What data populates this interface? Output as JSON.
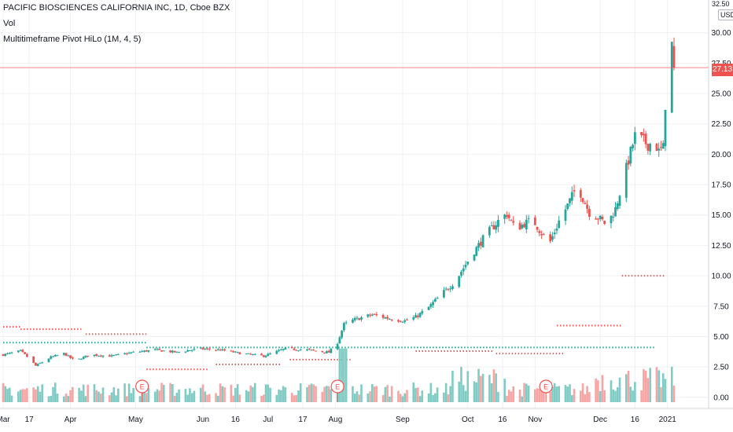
{
  "legend": {
    "symbol": "PACIFIC BIOSCIENCES CALIFORNIA INC, 1D, Cboe BZX",
    "vol": "Vol",
    "indicator": "Multitimeframe Pivot HiLo (1M, 4, 5)"
  },
  "currency": "USD",
  "top_cut_label": "32.50",
  "last_price": "27.13",
  "colors": {
    "up": "#26a69a",
    "down": "#ef5350",
    "vol_up": "#80cbc4",
    "vol_down": "#f7a5a4",
    "pivot_high": "#ef5350",
    "pivot_low": "#26a69a",
    "grid": "#eef0f3",
    "axis_text": "#131722"
  },
  "chart_data": {
    "type": "candlestick",
    "title": "PACIFIC BIOSCIENCES CALIFORNIA INC, 1D, Cboe BZX",
    "y_ticks": [
      "0.00",
      "2.50",
      "5.00",
      "7.50",
      "10.00",
      "12.50",
      "15.00",
      "17.50",
      "20.00",
      "22.50",
      "25.00",
      "27.50",
      "30.00"
    ],
    "ylim": [
      -0.4,
      32.5
    ],
    "x_ticks": [
      "Mar",
      "17",
      "Apr",
      "May",
      "Jun",
      "16",
      "Jul",
      "17",
      "Aug",
      "Sep",
      "Oct",
      "16",
      "Nov",
      "Dec",
      "16",
      "2021"
    ],
    "x_tick_days": [
      0,
      12,
      31,
      61,
      92,
      107,
      122,
      138,
      153,
      184,
      214,
      230,
      245,
      275,
      291,
      306
    ],
    "days_range": [
      0,
      330
    ],
    "last_price": 27.13,
    "earnings_markers": [
      {
        "label": "E",
        "day": 64
      },
      {
        "label": "E",
        "day": 154
      },
      {
        "label": "E",
        "day": 250
      }
    ],
    "pivot_lines": [
      {
        "kind": "high",
        "from": 0,
        "to": 8,
        "value": 5.8
      },
      {
        "kind": "low",
        "from": 0,
        "to": 66,
        "value": 4.5
      },
      {
        "kind": "high",
        "from": 8,
        "to": 36,
        "value": 5.6
      },
      {
        "kind": "high",
        "from": 38,
        "to": 66,
        "value": 5.2
      },
      {
        "kind": "low",
        "from": 66,
        "to": 300,
        "value": 4.1
      },
      {
        "kind": "high",
        "from": 66,
        "to": 95,
        "value": 2.3
      },
      {
        "kind": "high",
        "from": 98,
        "to": 128,
        "value": 2.7
      },
      {
        "kind": "high",
        "from": 132,
        "to": 160,
        "value": 3.1
      },
      {
        "kind": "high",
        "from": 190,
        "to": 226,
        "value": 3.8
      },
      {
        "kind": "high",
        "from": 227,
        "to": 258,
        "value": 3.6
      },
      {
        "kind": "high",
        "from": 255,
        "to": 285,
        "value": 5.9
      },
      {
        "kind": "high",
        "from": 285,
        "to": 305,
        "value": 10.0
      }
    ],
    "anchors": [
      [
        0,
        3.5
      ],
      [
        8,
        3.8
      ],
      [
        12,
        3.2
      ],
      [
        15,
        2.6
      ],
      [
        22,
        3.3
      ],
      [
        28,
        3.6
      ],
      [
        33,
        3.0
      ],
      [
        40,
        3.5
      ],
      [
        50,
        3.4
      ],
      [
        60,
        3.7
      ],
      [
        70,
        3.9
      ],
      [
        80,
        3.7
      ],
      [
        90,
        4.0
      ],
      [
        100,
        3.9
      ],
      [
        110,
        3.6
      ],
      [
        120,
        3.4
      ],
      [
        130,
        4.0
      ],
      [
        140,
        3.9
      ],
      [
        150,
        3.7
      ],
      [
        154,
        4.5
      ],
      [
        157,
        6.0
      ],
      [
        162,
        6.4
      ],
      [
        170,
        6.8
      ],
      [
        175,
        6.6
      ],
      [
        180,
        6.4
      ],
      [
        185,
        6.3
      ],
      [
        190,
        6.6
      ],
      [
        196,
        7.4
      ],
      [
        202,
        8.5
      ],
      [
        208,
        9.5
      ],
      [
        215,
        11.5
      ],
      [
        222,
        13.3
      ],
      [
        228,
        14.5
      ],
      [
        232,
        15.1
      ],
      [
        236,
        13.8
      ],
      [
        240,
        14.3
      ],
      [
        244,
        14.6
      ],
      [
        248,
        13.5
      ],
      [
        252,
        12.8
      ],
      [
        256,
        14.5
      ],
      [
        260,
        15.8
      ],
      [
        263,
        16.9
      ],
      [
        266,
        16.8
      ],
      [
        270,
        15.2
      ],
      [
        274,
        14.8
      ],
      [
        278,
        14.2
      ],
      [
        282,
        15.5
      ],
      [
        285,
        17.5
      ],
      [
        288,
        19.5
      ],
      [
        291,
        21.5
      ],
      [
        294,
        21.2
      ],
      [
        297,
        20.8
      ],
      [
        300,
        21.0
      ],
      [
        302,
        20.2
      ],
      [
        304,
        20.5
      ],
      [
        306,
        27.8
      ],
      [
        308,
        29.0
      ],
      [
        309,
        27.13
      ]
    ],
    "volume_axis_max": 40
  }
}
